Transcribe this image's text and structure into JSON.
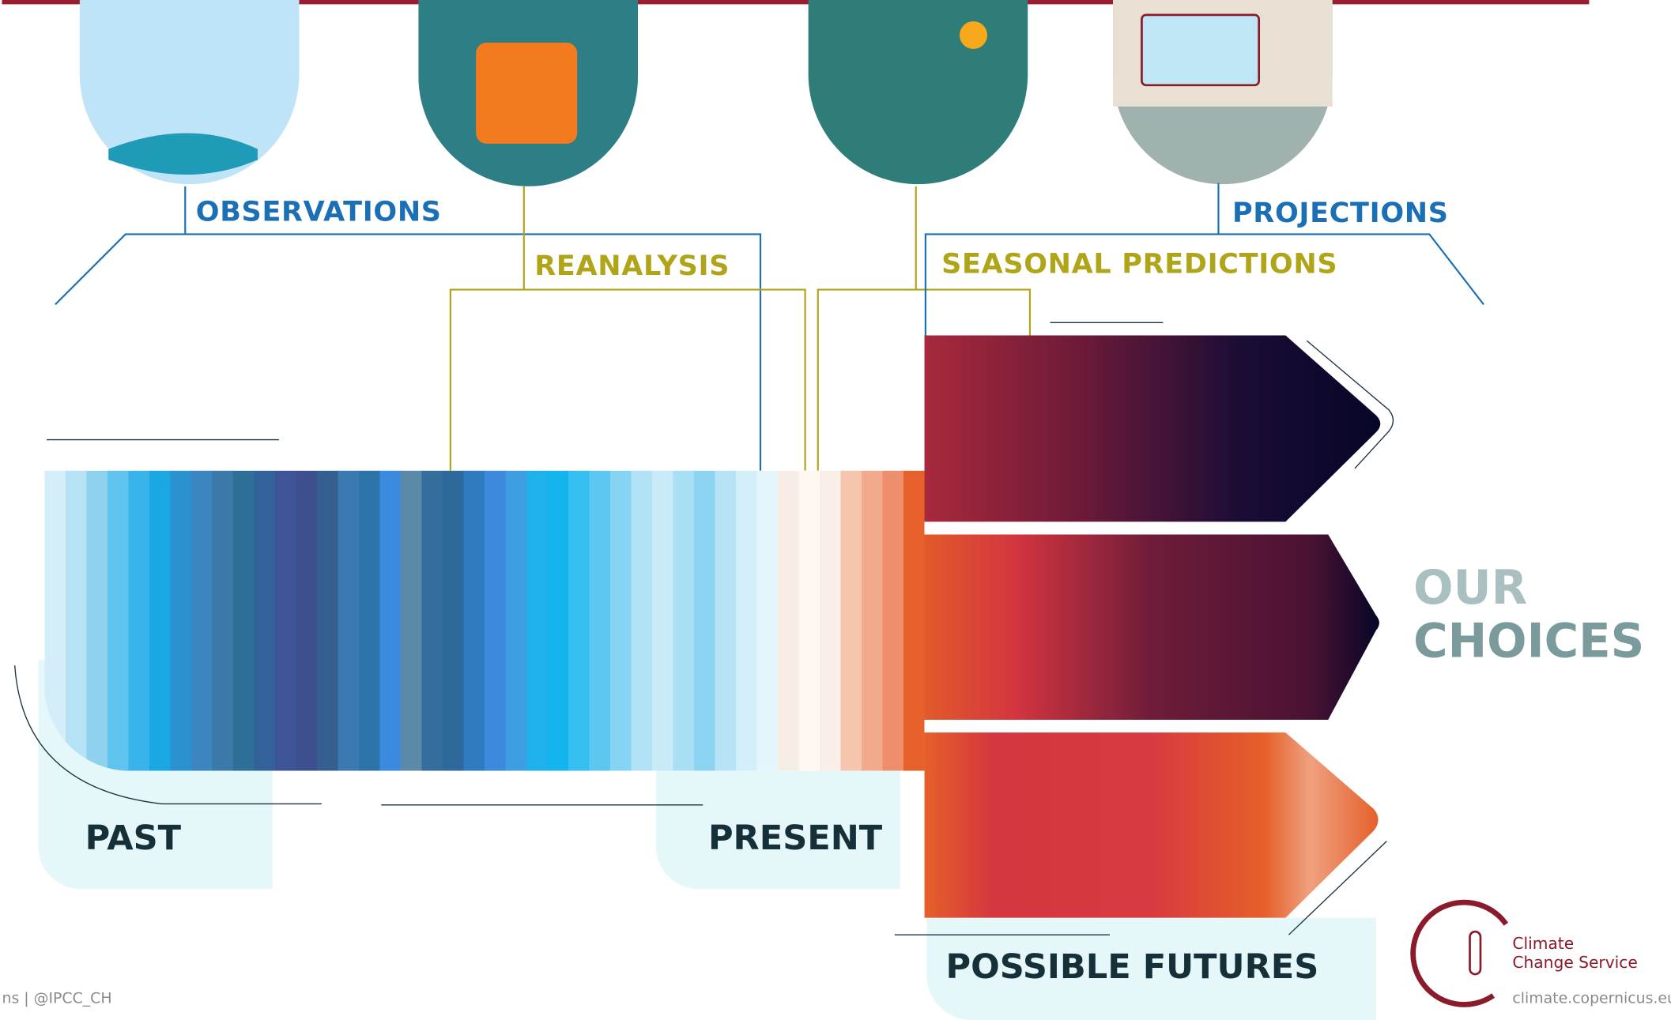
{
  "header": {
    "stages": [
      "OBSERVATIONS",
      "REANALYSIS",
      "SEASONAL PREDICTIONS",
      "PROJECTIONS"
    ]
  },
  "timeline": {
    "past": "PAST",
    "present": "PRESENT",
    "futures": "POSSIBLE FUTURES",
    "choices": [
      "OUR",
      "CHOICES"
    ]
  },
  "footer": {
    "credit": "ns | @IPCC_CH",
    "logo": [
      "Climate",
      "Change Service"
    ],
    "url": "climate.copernicus.eu"
  }
}
